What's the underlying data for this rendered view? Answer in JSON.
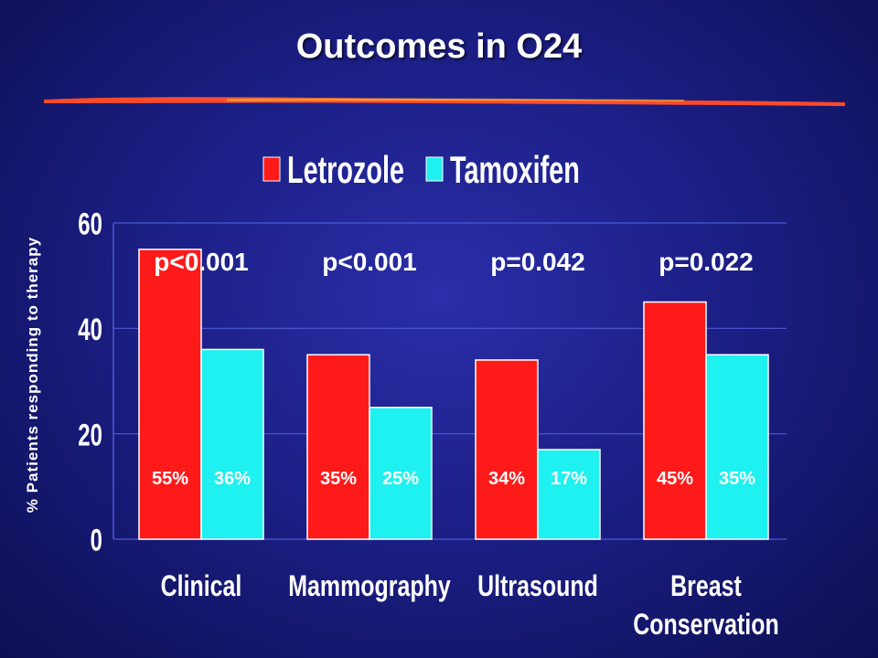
{
  "slide": {
    "title": "Outcomes in O24"
  },
  "colors": {
    "letrozole": "#ff1a1a",
    "tamoxifen": "#1ff0f0",
    "background": "#1c1f86",
    "underline": "#ff4a2a"
  },
  "chart_data": {
    "type": "bar",
    "ylabel": "% Patients responding to therapy",
    "ylim": [
      0,
      60
    ],
    "yticks": [
      "0",
      "20",
      "40",
      "60"
    ],
    "categories": [
      [
        "Clinical"
      ],
      [
        "Mammography"
      ],
      [
        "Ultrasound"
      ],
      [
        "Breast",
        "Conservation"
      ]
    ],
    "series": [
      {
        "name": "Letrozole",
        "values": [
          55,
          35,
          34,
          45
        ],
        "labels": [
          "55%",
          "35%",
          "34%",
          "45%"
        ]
      },
      {
        "name": "Tamoxifen",
        "values": [
          36,
          25,
          17,
          35
        ],
        "labels": [
          "36%",
          "25%",
          "17%",
          "35%"
        ]
      }
    ],
    "p_values": [
      "p<0.001",
      "p<0.001",
      "p=0.042",
      "p=0.022"
    ],
    "legend_position": "top",
    "grid": true
  }
}
